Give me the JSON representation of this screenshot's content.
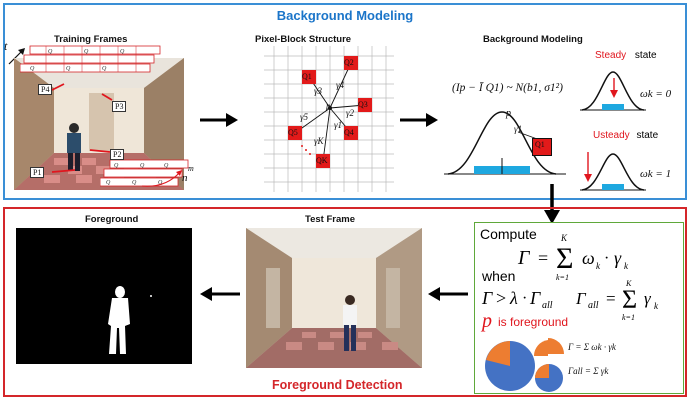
{
  "top_section": {
    "title": "Background Modeling",
    "training": {
      "label": "Training Frames",
      "axis_t": "t",
      "axis_n": "n",
      "axis_m": "m",
      "block_labels": [
        "P4",
        "P3",
        "P2",
        "P1"
      ],
      "grid_cell_label": "Q"
    },
    "pixel_block": {
      "label": "Pixel-Block Structure",
      "center": "p",
      "q_labels": [
        "Q1",
        "Q2",
        "Q3",
        "Q4",
        "Q5",
        "QK"
      ],
      "gamma_labels": [
        "γ3",
        "γ4",
        "γ2",
        "γ1",
        "γ5",
        "γK"
      ]
    },
    "modeling": {
      "label": "Background Modeling",
      "formula": "(Ip − Ῑ Q1) ~ N(b1, σ1²)",
      "p_label": "p",
      "gamma_label": "γ1",
      "q_label": "Q1",
      "steady_word": "Steady",
      "steady_state": "state",
      "steady_omega": "ωk = 0",
      "unsteady_word": "Usteady",
      "unsteady_state": "state",
      "unsteady_omega": "ωk = 1"
    }
  },
  "bottom_section": {
    "title": "Foreground Detection",
    "foreground_label": "Foreground",
    "test_frame_label": "Test Frame",
    "compute": {
      "compute_word": "Compute",
      "gamma_formula": "Γ = Σk=1..K ωk · γk",
      "when_word": "when",
      "condition": "Γ > λ · Γall",
      "gamma_all": "Γall = Σk=1..K γk",
      "p_symbol": "p",
      "is_foreground": "is foreground",
      "small_gamma": "Γ = Σ ωk · γk",
      "small_gamma_all": "Γall = Σ γk"
    }
  },
  "colors": {
    "top_border": "#3a8fd6",
    "bottom_border": "#d4262a",
    "compute_border": "#5fa83a",
    "q_block": "#e21a1a",
    "pie_blue": "#4472c4",
    "pie_orange": "#ed7d31",
    "bell_fill": "#1ea8e0"
  }
}
